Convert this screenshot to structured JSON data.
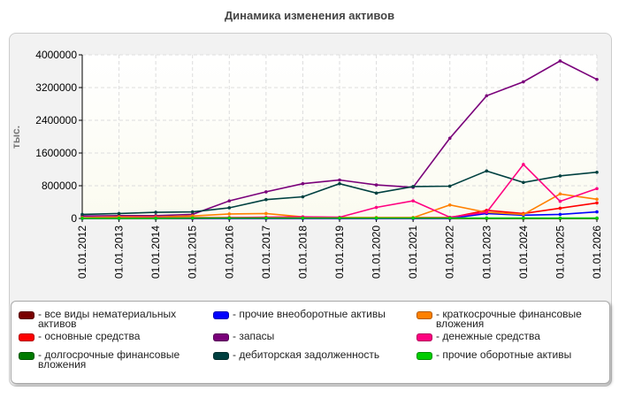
{
  "chart_data": {
    "type": "line",
    "title": "Динамика изменения активов",
    "ylabel": "тыс.",
    "xlabel": "",
    "ylim": [
      0,
      4000000
    ],
    "yticks": [
      0,
      800000,
      1600000,
      2400000,
      3200000,
      4000000
    ],
    "grid": true,
    "legend_position": "bottom",
    "x": [
      "01.01.2012",
      "01.01.2013",
      "01.01.2014",
      "01.01.2015",
      "01.01.2016",
      "01.01.2017",
      "01.01.2018",
      "01.01.2019",
      "01.01.2020",
      "01.01.2021",
      "01.01.2022",
      "01.01.2023",
      "01.01.2024",
      "01.01.2025",
      "01.01.2026"
    ],
    "series": [
      {
        "name": "все виды нематериальных активов",
        "color": "#7a0000",
        "values": [
          0,
          0,
          0,
          0,
          0,
          0,
          0,
          0,
          0,
          0,
          0,
          0,
          0,
          0,
          0
        ]
      },
      {
        "name": "основные средства",
        "color": "#ff0000",
        "values": [
          10000,
          30000,
          20000,
          20000,
          20000,
          20000,
          20000,
          20000,
          20000,
          20000,
          20000,
          200000,
          120000,
          250000,
          380000
        ]
      },
      {
        "name": "долгосрочные финансовые вложения",
        "color": "#007a00",
        "values": [
          5000,
          5000,
          5000,
          5000,
          5000,
          5000,
          5000,
          5000,
          5000,
          5000,
          5000,
          5000,
          5000,
          5000,
          5000
        ]
      },
      {
        "name": "прочие внеоборотные активы",
        "color": "#0000ff",
        "values": [
          0,
          0,
          0,
          0,
          0,
          0,
          0,
          0,
          0,
          0,
          0,
          120000,
          80000,
          100000,
          160000
        ]
      },
      {
        "name": "запасы",
        "color": "#7a007a",
        "values": [
          60000,
          70000,
          70000,
          100000,
          430000,
          650000,
          850000,
          940000,
          820000,
          760000,
          1960000,
          3000000,
          3340000,
          3850000,
          3400000
        ]
      },
      {
        "name": "дебиторская задолженность",
        "color": "#004040",
        "values": [
          100000,
          120000,
          150000,
          160000,
          260000,
          460000,
          530000,
          850000,
          620000,
          780000,
          790000,
          1160000,
          880000,
          1040000,
          1130000
        ]
      },
      {
        "name": "краткосрочные финансовые вложения",
        "color": "#ff8000",
        "values": [
          20000,
          40000,
          40000,
          60000,
          110000,
          120000,
          40000,
          20000,
          20000,
          20000,
          330000,
          150000,
          100000,
          600000,
          470000
        ]
      },
      {
        "name": "денежные средства",
        "color": "#ff0080",
        "values": [
          10000,
          10000,
          20000,
          10000,
          20000,
          30000,
          40000,
          30000,
          270000,
          430000,
          30000,
          150000,
          1320000,
          420000,
          730000
        ]
      },
      {
        "name": "прочие оборотные активы",
        "color": "#00cc00",
        "values": [
          5000,
          5000,
          5000,
          10000,
          10000,
          10000,
          10000,
          10000,
          10000,
          10000,
          10000,
          10000,
          10000,
          10000,
          10000
        ]
      }
    ]
  }
}
